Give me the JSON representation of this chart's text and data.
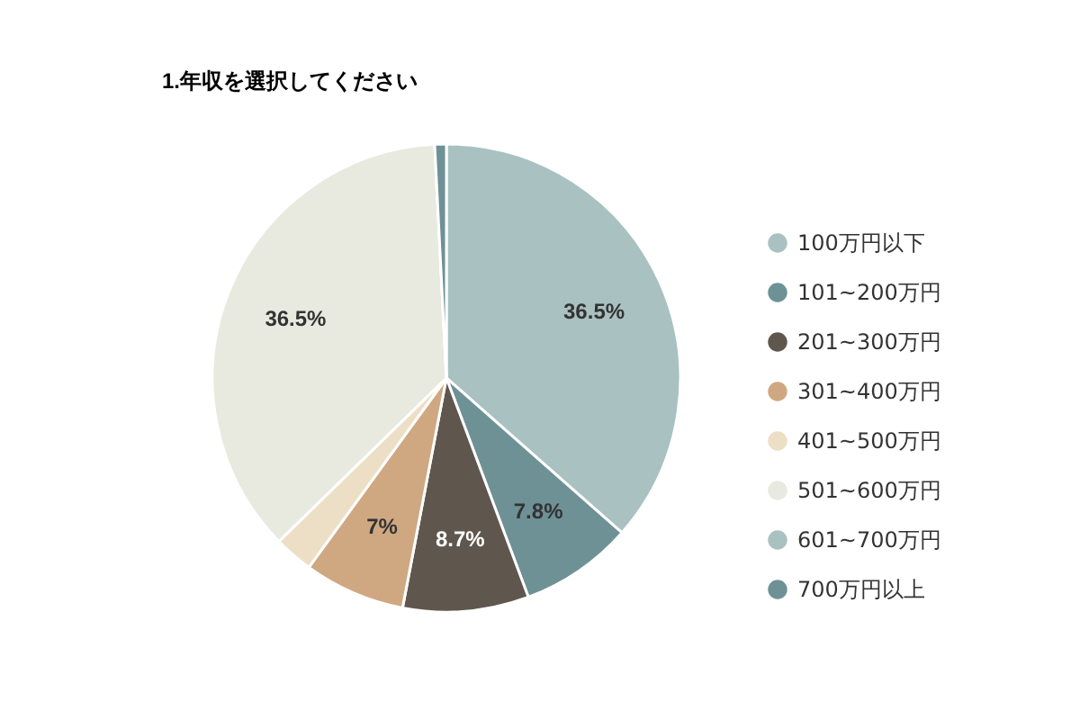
{
  "chart_data": {
    "type": "pie",
    "title": "1.年収を選択してください",
    "categories": [
      "100万円以下",
      "101~200万円",
      "201~300万円",
      "301~400万円",
      "401~500万円",
      "501~600万円",
      "601~700万円",
      "700万円以上"
    ],
    "values": [
      36.5,
      7.8,
      8.7,
      7,
      2.7,
      36.5,
      0,
      0.8
    ],
    "value_labels": [
      "36.5%",
      "7.8%",
      "8.7%",
      "7%",
      null,
      "36.5%",
      null,
      null
    ],
    "colors": [
      "#a9c1c1",
      "#6e9196",
      "#5f564e",
      "#cfa882",
      "#ecdfc6",
      "#e8eadf",
      "#a9c1c1",
      "#6e9196"
    ],
    "legend": "right"
  }
}
